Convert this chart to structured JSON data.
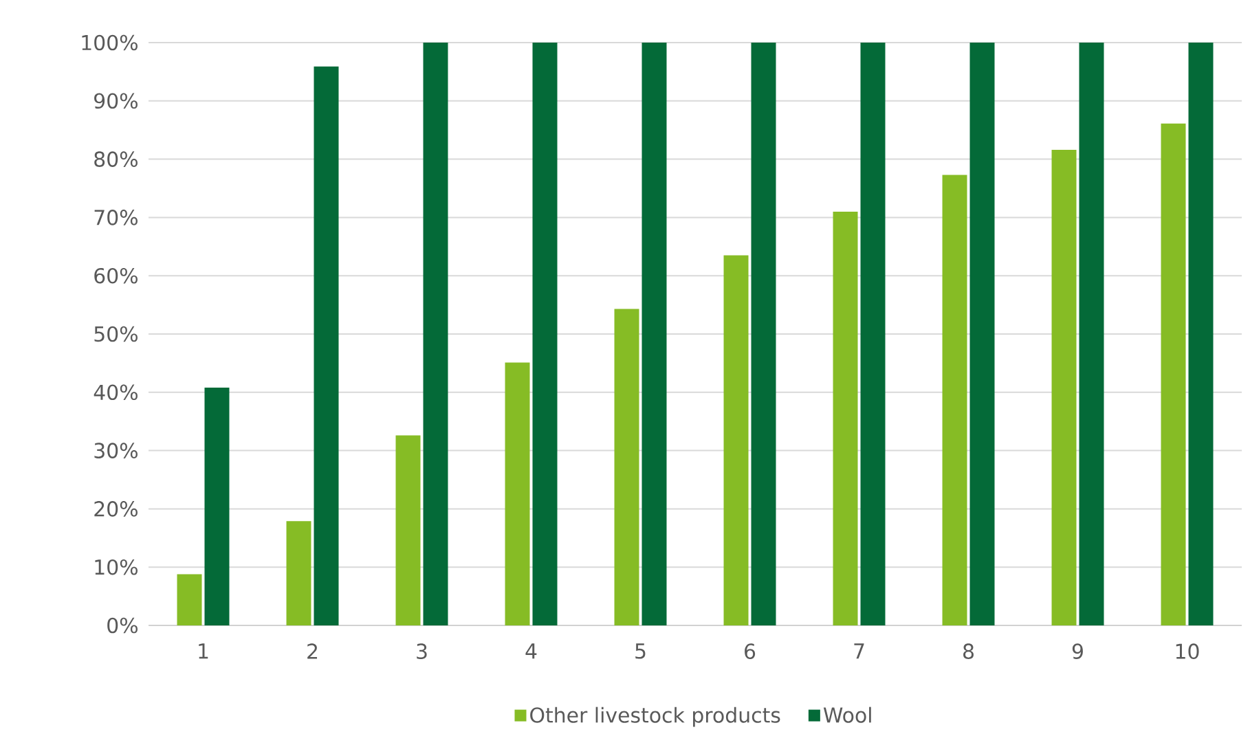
{
  "chart_data": {
    "type": "bar",
    "categories": [
      "1",
      "2",
      "3",
      "4",
      "5",
      "6",
      "7",
      "8",
      "9",
      "10"
    ],
    "series": [
      {
        "name": "Other livestock products",
        "color": "#86bc25",
        "values": [
          8.8,
          17.9,
          32.6,
          45.1,
          54.3,
          63.5,
          71.0,
          77.3,
          81.6,
          86.1
        ]
      },
      {
        "name": "Wool",
        "color": "#046a38",
        "values": [
          40.8,
          95.9,
          100,
          100,
          100,
          100,
          100,
          100,
          100,
          100
        ]
      }
    ],
    "ylim": [
      0,
      100
    ],
    "yticks": [
      {
        "value": 0,
        "label": "0%"
      },
      {
        "value": 10,
        "label": "10%"
      },
      {
        "value": 20,
        "label": "20%"
      },
      {
        "value": 30,
        "label": "30%"
      },
      {
        "value": 40,
        "label": "40%"
      },
      {
        "value": 50,
        "label": "50%"
      },
      {
        "value": 60,
        "label": "60%"
      },
      {
        "value": 70,
        "label": "70%"
      },
      {
        "value": 80,
        "label": "80%"
      },
      {
        "value": 90,
        "label": "90%"
      },
      {
        "value": 100,
        "label": "100%"
      }
    ],
    "grid": "y",
    "legend": "bottom"
  }
}
